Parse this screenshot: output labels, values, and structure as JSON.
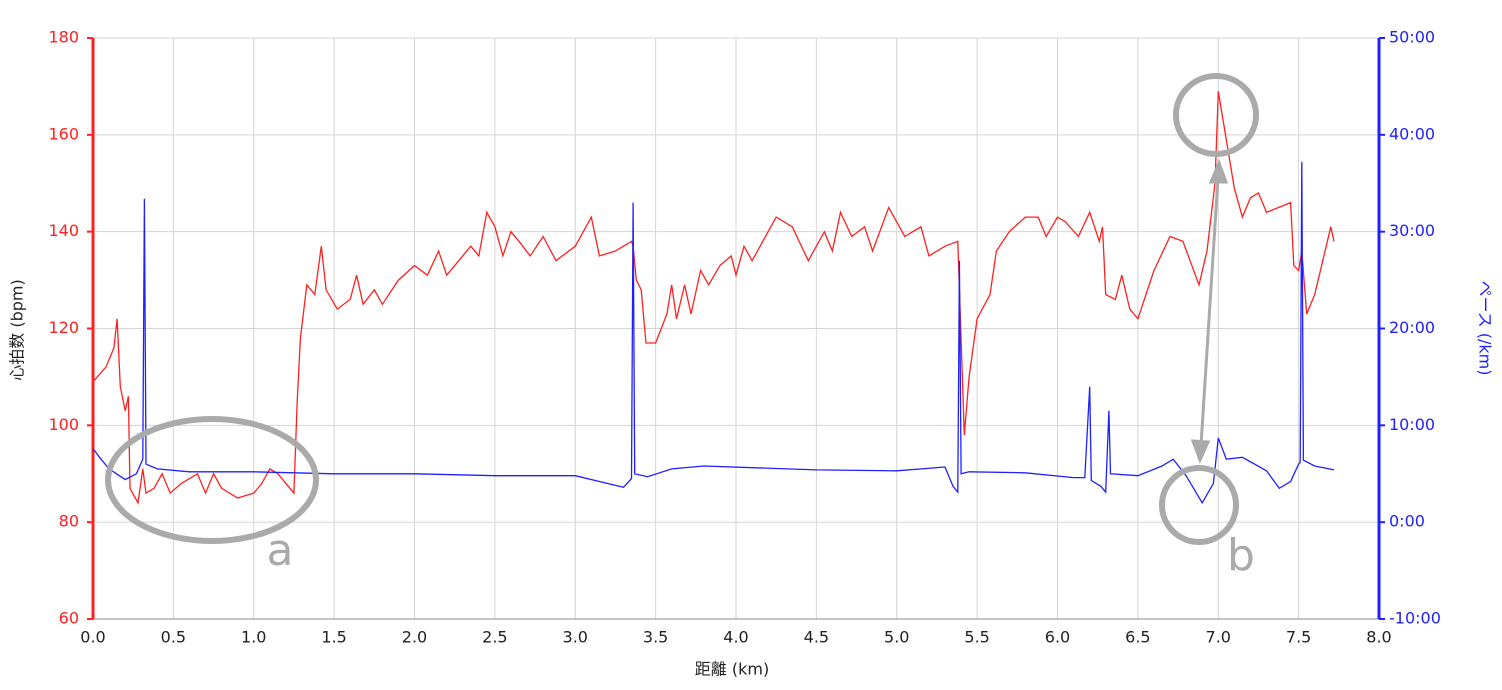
{
  "chart_data": {
    "type": "line",
    "xlabel": "距離 (km)",
    "ylabel": "心拍数 (bpm)",
    "y2label": "ペース (/km)",
    "xlim": [
      0,
      8
    ],
    "xticks": [
      {
        "value": 0,
        "label": "0.0"
      },
      0.5,
      {
        "value": 1,
        "label": "1.0"
      },
      1.5,
      {
        "value": 2,
        "label": "2.0"
      },
      2.5,
      {
        "value": 3,
        "label": "3.0"
      },
      3.5,
      {
        "value": 4,
        "label": "4.0"
      },
      4.5,
      {
        "value": 5,
        "label": "5.0"
      },
      5.5,
      {
        "value": 6,
        "label": "6.0"
      },
      6.5,
      {
        "value": 7,
        "label": "7.0"
      },
      7.5,
      {
        "value": 8,
        "label": "8.0"
      }
    ],
    "ylim": [
      60,
      180
    ],
    "yticks": [
      60,
      80,
      100,
      120,
      140,
      160,
      180
    ],
    "y2lim": [
      -10,
      50
    ],
    "y2ticks": [
      {
        "value": -10,
        "label": "-10:00"
      },
      {
        "value": 0,
        "label": "0:00"
      },
      {
        "value": 10,
        "label": "10:00"
      },
      {
        "value": 20,
        "label": "20:00"
      },
      {
        "value": 30,
        "label": "30:00"
      },
      {
        "value": 40,
        "label": "40:00"
      },
      {
        "value": 50,
        "label": "50:00"
      }
    ],
    "grid": true,
    "series": [
      {
        "name": "心拍数",
        "color": "#ff2020",
        "axis": "y",
        "x": [
          0.0,
          0.08,
          0.13,
          0.15,
          0.17,
          0.2,
          0.22,
          0.23,
          0.28,
          0.31,
          0.33,
          0.38,
          0.43,
          0.48,
          0.55,
          0.65,
          0.7,
          0.75,
          0.8,
          0.9,
          1.0,
          1.05,
          1.1,
          1.15,
          1.2,
          1.25,
          1.27,
          1.29,
          1.33,
          1.38,
          1.42,
          1.45,
          1.52,
          1.6,
          1.64,
          1.68,
          1.75,
          1.8,
          1.9,
          2.0,
          2.08,
          2.15,
          2.2,
          2.3,
          2.35,
          2.4,
          2.45,
          2.5,
          2.55,
          2.6,
          2.65,
          2.72,
          2.8,
          2.88,
          3.0,
          3.1,
          3.15,
          3.25,
          3.35,
          3.36,
          3.38,
          3.41,
          3.44,
          3.5,
          3.57,
          3.6,
          3.63,
          3.68,
          3.72,
          3.78,
          3.83,
          3.9,
          3.97,
          4.0,
          4.05,
          4.1,
          4.2,
          4.25,
          4.35,
          4.45,
          4.55,
          4.6,
          4.65,
          4.72,
          4.8,
          4.85,
          4.95,
          5.05,
          5.15,
          5.2,
          5.3,
          5.38,
          5.42,
          5.45,
          5.5,
          5.58,
          5.62,
          5.7,
          5.8,
          5.88,
          5.93,
          6.0,
          6.05,
          6.13,
          6.2,
          6.26,
          6.28,
          6.3,
          6.36,
          6.4,
          6.45,
          6.5,
          6.6,
          6.7,
          6.78,
          6.88,
          6.93,
          6.98,
          7.0,
          7.04,
          7.1,
          7.15,
          7.2,
          7.25,
          7.3,
          7.45,
          7.47,
          7.5,
          7.52,
          7.55,
          7.6,
          7.7,
          7.72
        ],
        "values": [
          109,
          112,
          116,
          122,
          108,
          103,
          106,
          87,
          84,
          91,
          86,
          87,
          90,
          86,
          88,
          90,
          86,
          90,
          87,
          85,
          86,
          88,
          91,
          90,
          88,
          86,
          105,
          118,
          129,
          127,
          137,
          128,
          124,
          126,
          131,
          125,
          128,
          125,
          130,
          133,
          131,
          136,
          131,
          135,
          137,
          135,
          144,
          141,
          135,
          140,
          138,
          135,
          139,
          134,
          137,
          143,
          135,
          136,
          138,
          137,
          130,
          128,
          117,
          117,
          123,
          129,
          122,
          129,
          123,
          132,
          129,
          133,
          135,
          131,
          137,
          134,
          140,
          143,
          141,
          134,
          140,
          136,
          144,
          139,
          141,
          136,
          145,
          139,
          141,
          135,
          137,
          138,
          98,
          110,
          122,
          127,
          136,
          140,
          143,
          143,
          139,
          143,
          142,
          139,
          144,
          138,
          141,
          127,
          126,
          131,
          124,
          122,
          132,
          139,
          138,
          129,
          136,
          150,
          169,
          161,
          149,
          143,
          147,
          148,
          144,
          146,
          133,
          132,
          136,
          123,
          127,
          141,
          138
        ]
      },
      {
        "name": "ペース",
        "color": "#2020ff",
        "axis": "y2",
        "x": [
          0.0,
          0.05,
          0.1,
          0.2,
          0.27,
          0.31,
          0.32,
          0.33,
          0.4,
          0.6,
          1.0,
          1.5,
          2.0,
          2.5,
          3.0,
          3.15,
          3.3,
          3.35,
          3.36,
          3.37,
          3.45,
          3.6,
          3.8,
          4.5,
          5.0,
          5.3,
          5.35,
          5.38,
          5.39,
          5.4,
          5.45,
          5.8,
          6.1,
          6.17,
          6.2,
          6.21,
          6.27,
          6.3,
          6.32,
          6.33,
          6.5,
          6.65,
          6.72,
          6.8,
          6.9,
          6.97,
          7.0,
          7.05,
          7.15,
          7.3,
          7.38,
          7.45,
          7.5,
          7.51,
          7.52,
          7.53,
          7.6,
          7.72
        ],
        "values": [
          7.6,
          6.5,
          5.5,
          4.4,
          5,
          6.5,
          33.4,
          6,
          5.5,
          5.2,
          5.2,
          5.0,
          5.0,
          4.8,
          4.8,
          4.2,
          3.6,
          4.5,
          33,
          5,
          4.7,
          5.5,
          5.8,
          5.4,
          5.3,
          5.7,
          3.7,
          3.1,
          27,
          5,
          5.2,
          5.1,
          4.6,
          4.6,
          14,
          4.3,
          3.7,
          3.1,
          11.5,
          5.0,
          4.8,
          5.8,
          6.5,
          4.8,
          2,
          4,
          8.7,
          6.5,
          6.7,
          5.3,
          3.5,
          4.2,
          6.0,
          6.2,
          37.2,
          6.4,
          5.8,
          5.4
        ]
      }
    ],
    "annotations": [
      "a",
      "b"
    ]
  }
}
